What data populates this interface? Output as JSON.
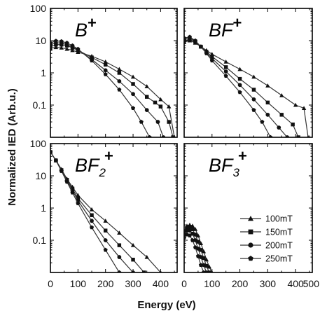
{
  "chart_data": [
    {
      "type": "line",
      "panel": "top-left",
      "label": "B",
      "label_sup": "+",
      "label_sub": "",
      "yscale": "log",
      "ylim": [
        0.01,
        100
      ],
      "xlim": [
        0,
        460
      ],
      "series": [
        {
          "name": "100mT",
          "marker": "triangle",
          "x": [
            0,
            20,
            40,
            60,
            80,
            100,
            150,
            200,
            250,
            300,
            350,
            400,
            430,
            450
          ],
          "y": [
            5.8,
            6.2,
            6.0,
            5.5,
            5.0,
            4.4,
            3.3,
            2.2,
            1.3,
            0.75,
            0.38,
            0.15,
            0.09,
            0.01
          ]
        },
        {
          "name": "150mT",
          "marker": "square",
          "x": [
            0,
            20,
            40,
            60,
            80,
            100,
            150,
            200,
            250,
            300,
            350,
            380,
            400,
            430,
            445
          ],
          "y": [
            6.5,
            7.5,
            7.5,
            7.0,
            6.0,
            5.0,
            3.0,
            1.8,
            1.0,
            0.45,
            0.18,
            0.12,
            0.09,
            0.03,
            0.01
          ]
        },
        {
          "name": "200mT",
          "marker": "circle",
          "x": [
            0,
            20,
            40,
            60,
            80,
            100,
            150,
            200,
            250,
            300,
            350,
            390,
            410
          ],
          "y": [
            7.5,
            8.5,
            8.5,
            7.5,
            6.5,
            5.2,
            2.6,
            1.2,
            0.55,
            0.22,
            0.07,
            0.03,
            0.01
          ]
        },
        {
          "name": "250mT",
          "marker": "pentagon",
          "x": [
            0,
            20,
            40,
            60,
            80,
            100,
            150,
            200,
            250,
            300,
            330,
            360
          ],
          "y": [
            8.5,
            9.8,
            9.5,
            8.5,
            7.0,
            5.5,
            2.4,
            0.9,
            0.3,
            0.08,
            0.03,
            0.01
          ]
        }
      ]
    },
    {
      "type": "line",
      "panel": "top-right",
      "label": "BF",
      "label_sup": "+",
      "label_sub": "",
      "yscale": "log",
      "ylim": [
        0.01,
        100
      ],
      "xlim": [
        0,
        460
      ],
      "series": [
        {
          "name": "100mT",
          "marker": "triangle",
          "x": [
            0,
            20,
            40,
            60,
            80,
            100,
            150,
            200,
            250,
            300,
            350,
            400,
            430,
            445
          ],
          "y": [
            9.0,
            10.0,
            8.5,
            6.5,
            5.0,
            3.8,
            2.2,
            1.3,
            0.75,
            0.4,
            0.2,
            0.1,
            0.08,
            0.01
          ]
        },
        {
          "name": "150mT",
          "marker": "square",
          "x": [
            0,
            20,
            40,
            60,
            80,
            100,
            150,
            200,
            250,
            300,
            350,
            390,
            410
          ],
          "y": [
            10.0,
            11.0,
            9.0,
            6.5,
            4.5,
            3.2,
            1.5,
            0.65,
            0.3,
            0.12,
            0.05,
            0.025,
            0.01
          ]
        },
        {
          "name": "200mT",
          "marker": "circle",
          "x": [
            0,
            20,
            40,
            60,
            80,
            100,
            150,
            200,
            250,
            300,
            340,
            370
          ],
          "y": [
            11.0,
            12.0,
            9.5,
            6.5,
            4.2,
            2.8,
            1.1,
            0.42,
            0.15,
            0.05,
            0.02,
            0.01
          ]
        },
        {
          "name": "250mT",
          "marker": "pentagon",
          "x": [
            0,
            20,
            40,
            60,
            80,
            100,
            150,
            200,
            250,
            280,
            310
          ],
          "y": [
            12.0,
            13.0,
            10.0,
            6.5,
            4.0,
            2.4,
            0.8,
            0.25,
            0.07,
            0.03,
            0.01
          ]
        }
      ]
    },
    {
      "type": "line",
      "panel": "bottom-left",
      "label": "BF",
      "label_sup": "+",
      "label_sub": "2",
      "yscale": "log",
      "ylim": [
        0.01,
        100
      ],
      "xlim": [
        0,
        460
      ],
      "series": [
        {
          "name": "100mT",
          "marker": "triangle",
          "x": [
            0,
            20,
            40,
            60,
            80,
            100,
            150,
            200,
            250,
            300,
            350,
            400
          ],
          "y": [
            55,
            30,
            16,
            8.0,
            4.5,
            2.5,
            0.9,
            0.4,
            0.17,
            0.07,
            0.03,
            0.01
          ]
        },
        {
          "name": "150mT",
          "marker": "square",
          "x": [
            0,
            20,
            40,
            60,
            80,
            100,
            150,
            200,
            250,
            300,
            340
          ],
          "y": [
            55,
            30,
            15,
            7.5,
            4.0,
            2.0,
            0.6,
            0.2,
            0.07,
            0.025,
            0.01
          ]
        },
        {
          "name": "200mT",
          "marker": "circle",
          "x": [
            0,
            20,
            40,
            60,
            80,
            100,
            150,
            200,
            250,
            300
          ],
          "y": [
            55,
            30,
            15,
            7.0,
            3.5,
            1.7,
            0.4,
            0.1,
            0.03,
            0.01
          ]
        },
        {
          "name": "250mT",
          "marker": "pentagon",
          "x": [
            0,
            20,
            40,
            60,
            80,
            100,
            150,
            200,
            250
          ],
          "y": [
            55,
            30,
            14,
            6.5,
            3.0,
            1.4,
            0.25,
            0.05,
            0.01
          ]
        }
      ]
    },
    {
      "type": "line",
      "panel": "bottom-right",
      "label": "BF",
      "label_sup": "+",
      "label_sub": "3",
      "yscale": "log",
      "ylim": [
        0.01,
        100
      ],
      "xlim": [
        0,
        460
      ],
      "series": [
        {
          "name": "100mT",
          "marker": "triangle",
          "x": [
            0,
            10,
            20,
            30,
            40,
            50,
            60,
            70,
            80,
            90,
            100
          ],
          "y": [
            0.2,
            0.28,
            0.3,
            0.28,
            0.22,
            0.14,
            0.08,
            0.045,
            0.025,
            0.015,
            0.01
          ]
        },
        {
          "name": "150mT",
          "marker": "square",
          "x": [
            0,
            10,
            20,
            30,
            40,
            50,
            60,
            70,
            80,
            90
          ],
          "y": [
            0.18,
            0.24,
            0.26,
            0.22,
            0.15,
            0.09,
            0.05,
            0.028,
            0.016,
            0.01
          ]
        },
        {
          "name": "200mT",
          "marker": "circle",
          "x": [
            0,
            10,
            20,
            30,
            40,
            50,
            60,
            70,
            80
          ],
          "y": [
            0.15,
            0.2,
            0.2,
            0.16,
            0.1,
            0.055,
            0.03,
            0.017,
            0.01
          ]
        },
        {
          "name": "250mT",
          "marker": "pentagon",
          "x": [
            0,
            10,
            20,
            30,
            40,
            50,
            60,
            70
          ],
          "y": [
            0.12,
            0.15,
            0.14,
            0.1,
            0.06,
            0.032,
            0.017,
            0.01
          ]
        }
      ]
    }
  ],
  "axes": {
    "ylabel": "Normalized IED (Arb.u.)",
    "xlabel": "Energy (eV)",
    "y_ticks": [
      "100",
      "10",
      "1",
      "0.1"
    ],
    "y_tick_values": [
      100,
      10,
      1,
      0.1
    ],
    "x_ticks_left": [
      "0",
      "100",
      "200",
      "300",
      "400"
    ],
    "x_ticks_right": [
      "0",
      "100",
      "200",
      "300",
      "400",
      "500"
    ],
    "x_tick_values_left": [
      0,
      100,
      200,
      300,
      400
    ],
    "x_tick_values_right": [
      0,
      100,
      200,
      300,
      400,
      500
    ]
  },
  "legend": {
    "placement": "bottom-right panel, right side",
    "items": [
      {
        "label": "100mT",
        "marker": "triangle"
      },
      {
        "label": "150mT",
        "marker": "square"
      },
      {
        "label": "200mT",
        "marker": "circle"
      },
      {
        "label": "250mT",
        "marker": "pentagon"
      }
    ]
  },
  "colors": {
    "line": "#333333",
    "marker": "#111111",
    "frame": "#000000"
  }
}
